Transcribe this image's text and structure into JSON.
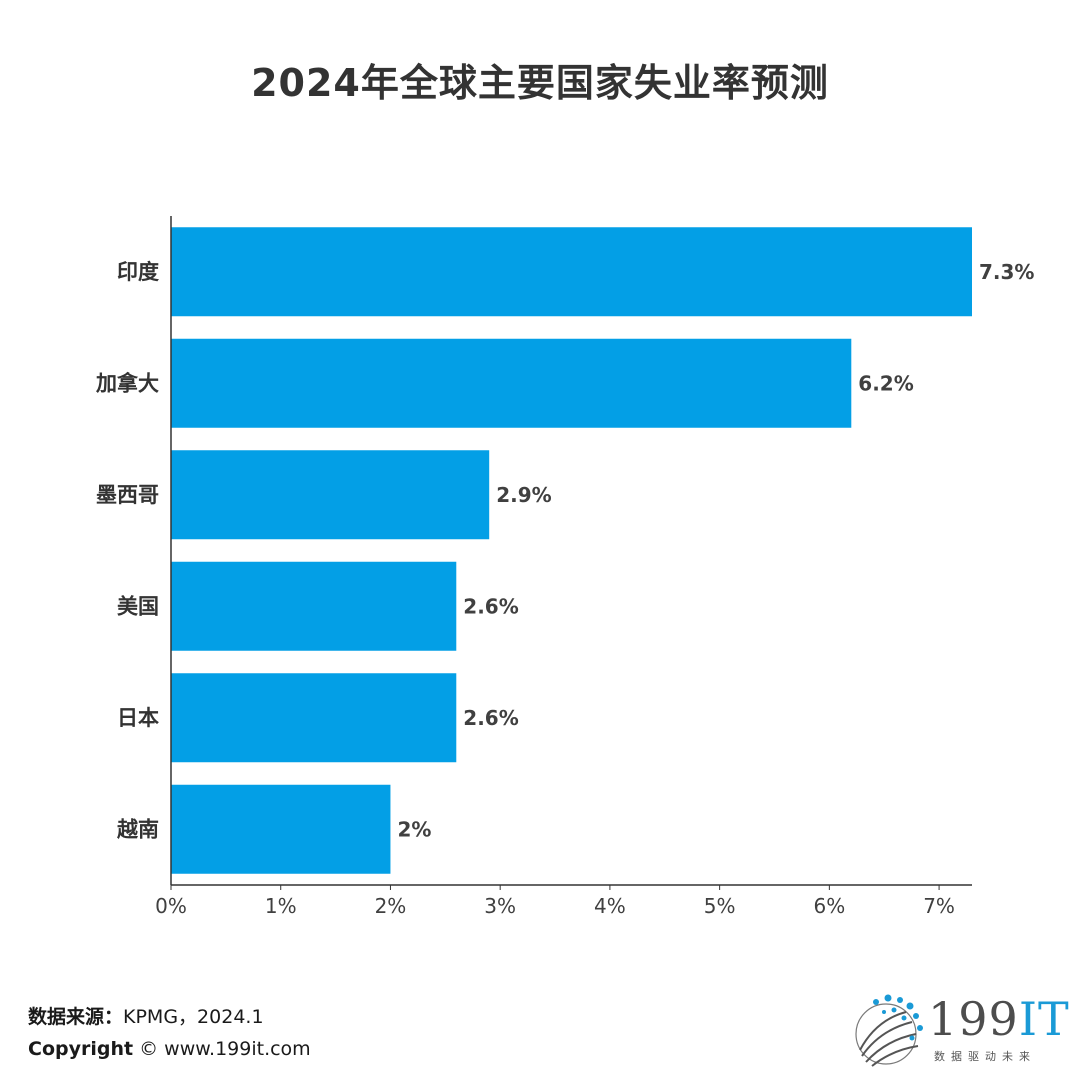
{
  "chart_data": {
    "type": "bar",
    "orientation": "horizontal",
    "title": "2024年全球主要国家失业率预测",
    "categories": [
      "印度",
      "加拿大",
      "墨西哥",
      "美国",
      "日本",
      "越南"
    ],
    "values": [
      7.3,
      6.2,
      2.9,
      2.6,
      2.6,
      2.0
    ],
    "value_labels": [
      "7.3%",
      "6.2%",
      "2.9%",
      "2.6%",
      "2.6%",
      "2%"
    ],
    "xlim": [
      0,
      7.3
    ],
    "xticks": [
      0,
      1,
      2,
      3,
      4,
      5,
      6,
      7
    ],
    "xtick_labels": [
      "0%",
      "1%",
      "2%",
      "3%",
      "4%",
      "5%",
      "6%",
      "7%"
    ],
    "xlabel": "",
    "ylabel": "",
    "grid": false,
    "bar_color": "#039fe6"
  },
  "footer": {
    "source_label": "数据来源：",
    "source_value": "KPMG，2024.1",
    "copyright_label": "Copyright",
    "copyright_value": "©  www.199it.com"
  },
  "logo": {
    "text_num": "199",
    "text_it": "IT",
    "slogan": "数据驱动未来"
  }
}
